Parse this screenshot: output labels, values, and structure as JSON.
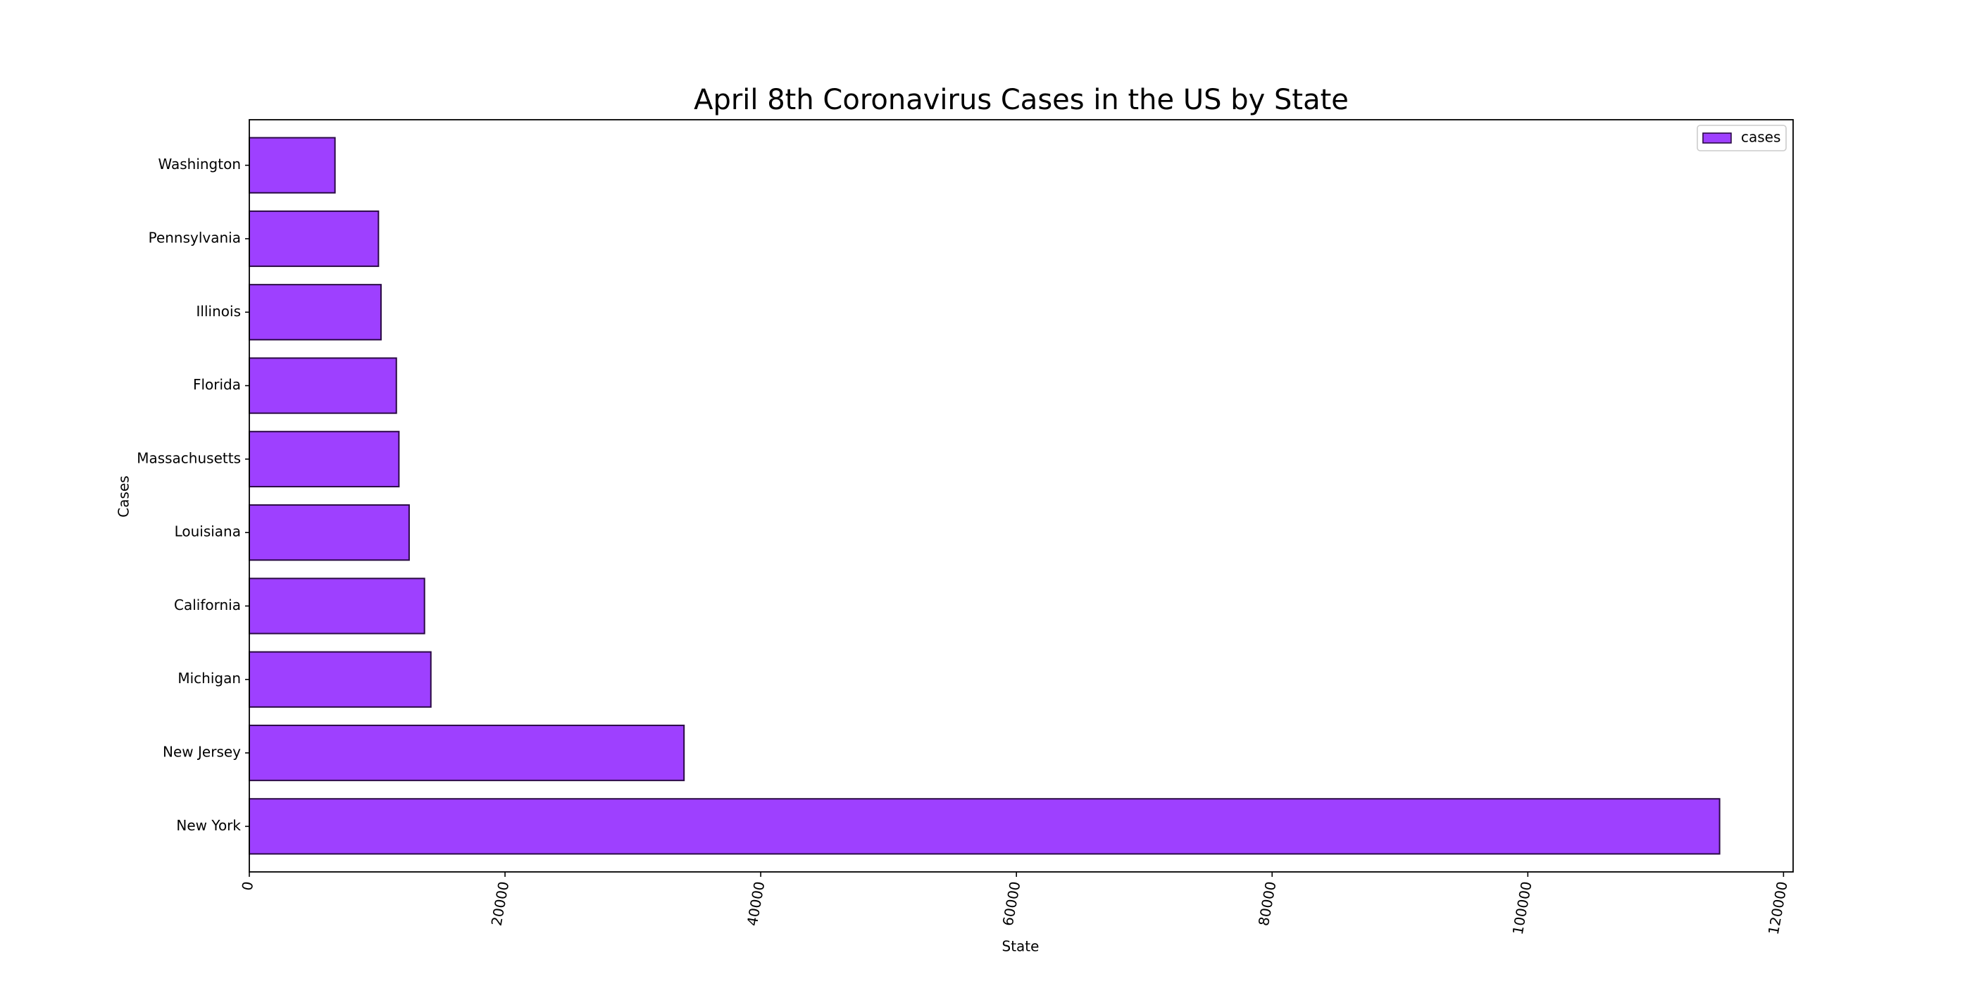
{
  "chart_data": {
    "type": "barh",
    "title": "April 8th Coronavirus Cases in the US by State",
    "x_label": "State",
    "y_label": "Cases",
    "categories": [
      "New York",
      "New Jersey",
      "Michigan",
      "California",
      "Louisiana",
      "Massachusetts",
      "Florida",
      "Illinois",
      "Pennsylvania",
      "Washington"
    ],
    "series": [
      {
        "name": "cases",
        "color": "#9e40ff",
        "values": [
          115000,
          34000,
          14200,
          13700,
          12500,
          11700,
          11500,
          10300,
          10100,
          6700
        ]
      }
    ],
    "xlim": [
      0,
      120750
    ],
    "xticks": [
      0,
      20000,
      40000,
      60000,
      80000,
      100000,
      120000
    ],
    "legend": "upper right"
  }
}
